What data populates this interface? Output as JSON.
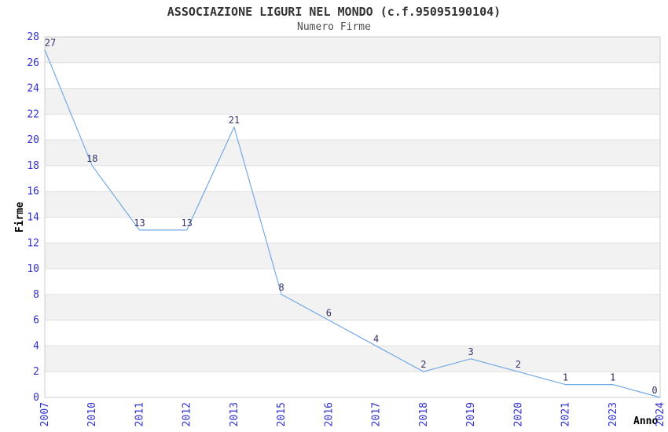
{
  "chart_data": {
    "type": "line",
    "title": "ASSOCIAZIONE LIGURI NEL MONDO (c.f.95095190104)",
    "subtitle": "Numero Firme",
    "xlabel": "Anno",
    "ylabel": "Firme",
    "categories": [
      "2007",
      "2010",
      "2011",
      "2012",
      "2013",
      "2015",
      "2016",
      "2017",
      "2018",
      "2019",
      "2020",
      "2021",
      "2023",
      "2024"
    ],
    "series": [
      {
        "name": "Numero Firme",
        "values": [
          27,
          18,
          13,
          13,
          21,
          8,
          6,
          4,
          2,
          3,
          2,
          1,
          1,
          0
        ]
      }
    ],
    "ylim": [
      0,
      28
    ],
    "ytick_step": 2,
    "grid": "horizontal",
    "background_bands": "alternating",
    "legend": "none",
    "point_labels": true,
    "colors": {
      "line": "#74a9e6",
      "tick_label": "#3030cf",
      "point_label": "#333366",
      "band_fill": "#f2f2f2",
      "gridline": "#e0e0e0",
      "plot_border": "#cccccc",
      "title": "#333333",
      "subtitle": "#4d4d4d",
      "axis_title": "#000000"
    }
  }
}
